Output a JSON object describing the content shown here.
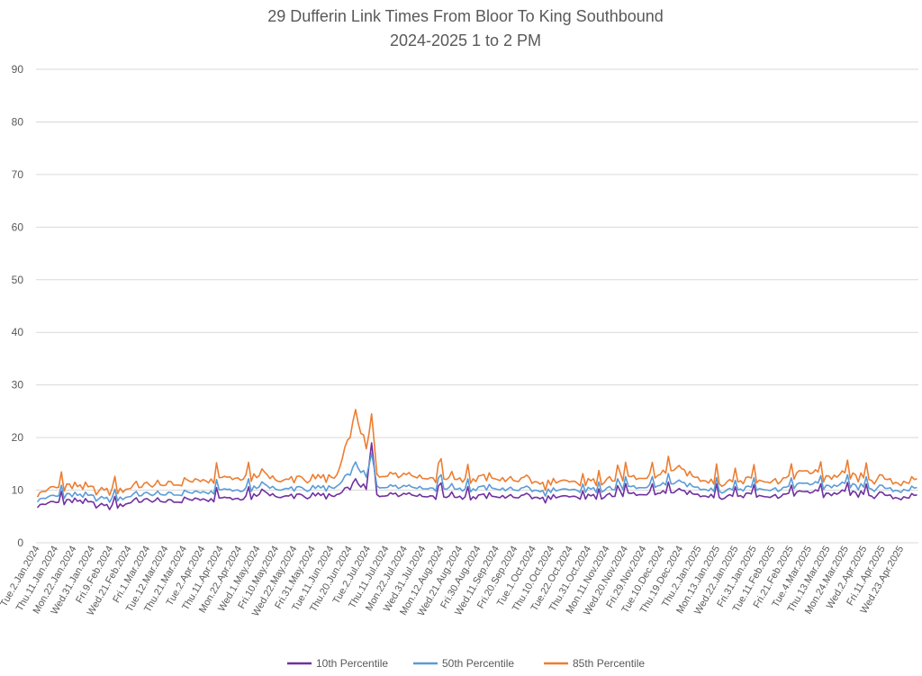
{
  "chart_data": {
    "type": "line",
    "title": "29 Dufferin Link Times From Bloor To King Southbound",
    "subtitle": "2024-2025 1 to 2 PM",
    "xlabel": "",
    "ylabel": "",
    "ylim": [
      0,
      90
    ],
    "yticks": [
      0,
      10,
      20,
      30,
      40,
      50,
      60,
      70,
      80,
      90
    ],
    "grid": true,
    "legend_position": "bottom",
    "x_labels": [
      "Tue.2.Jan.2024",
      "Thu.11.Jan.2024",
      "Mon.22.Jan.2024",
      "Wed.31.Jan.2024",
      "Fri.9.Feb.2024",
      "Wed.21.Feb.2024",
      "Fri.1.Mar.2024",
      "Tue.12.Mar.2024",
      "Thu.21.Mar.2024",
      "Tue.2.Apr.2024",
      "Thu.11.Apr.2024",
      "Mon.22.Apr.2024",
      "Wed.1.May.2024",
      "Fri.10.May.2024",
      "Wed.22.May.2024",
      "Fri.31.May.2024",
      "Tue.11.Jun.2024",
      "Thu.20.Jun.2024",
      "Tue.2.Jul.2024",
      "Thu.11.Jul.2024",
      "Mon.22.Jul.2024",
      "Wed.31.Jul.2024",
      "Mon.12.Aug.2024",
      "Wed.21.Aug.2024",
      "Fri.30.Aug.2024",
      "Wed.11.Sep.2024",
      "Fri.20.Sep.2024",
      "Tue.1.Oct.2024",
      "Thu.10.Oct.2024",
      "Tue.22.Oct.2024",
      "Thu.31.Oct.2024",
      "Mon.11.Nov.2024",
      "Wed.20.Nov.2024",
      "Fri.29.Nov.2024",
      "Tue.10.Dec.2024",
      "Thu.19.Dec.2024",
      "Thu.2.Jan.2025",
      "Mon.13.Jan.2025",
      "Wed.22.Jan.2025",
      "Fri.31.Jan.2025",
      "Tue.11.Feb.2025",
      "Fri.21.Feb.2025",
      "Tue.4.Mar.2025",
      "Thu.13.Mar.2025",
      "Mon.24.Mar.2025",
      "Wed.2.Apr.2025",
      "Fri.11.Apr.2025",
      "Wed.23.Apr.2025"
    ],
    "series": [
      {
        "name": "10th Percentile",
        "color": "#7030a0",
        "values": [
          7.3,
          7.6,
          8.0,
          7.4,
          6.8,
          7.8,
          8.2,
          7.6,
          8.3,
          7.9,
          8.5,
          8.2,
          9.6,
          8.6,
          9.0,
          8.8,
          8.9,
          11.6,
          9.1,
          9.5,
          9.4,
          8.8,
          9.0,
          8.5,
          9.0,
          8.6,
          9.0,
          8.3,
          8.7,
          8.4,
          8.9,
          9.1,
          9.0,
          9.2,
          9.8,
          9.4,
          9.0,
          8.8,
          9.3,
          8.7,
          9.0,
          9.8,
          9.2,
          9.3,
          9.1,
          9.0,
          8.6,
          9.0
        ]
      },
      {
        "name": "50th Percentile",
        "color": "#5b9bd5",
        "values": [
          8.4,
          8.8,
          9.1,
          8.7,
          8.2,
          9.0,
          9.4,
          9.0,
          9.6,
          9.3,
          10.1,
          9.8,
          11.0,
          10.0,
          10.4,
          10.2,
          10.5,
          14.8,
          10.8,
          11.0,
          10.9,
          10.3,
          10.6,
          10.0,
          10.6,
          10.0,
          10.4,
          9.6,
          10.0,
          9.7,
          10.2,
          10.4,
          10.3,
          10.6,
          11.5,
          10.8,
          10.2,
          10.0,
          10.6,
          10.0,
          10.3,
          11.4,
          10.7,
          10.8,
          10.5,
          10.3,
          10.0,
          10.4
        ]
      },
      {
        "name": "85th Percentile",
        "color": "#ed7d31",
        "values": [
          9.6,
          10.4,
          10.8,
          10.2,
          9.8,
          10.6,
          11.2,
          10.8,
          11.8,
          11.4,
          12.4,
          12.0,
          13.2,
          11.6,
          12.3,
          12.0,
          12.5,
          24.5,
          13.0,
          13.4,
          13.2,
          12.2,
          12.6,
          11.8,
          12.6,
          11.8,
          12.3,
          11.0,
          11.6,
          11.0,
          11.8,
          12.2,
          12.0,
          12.4,
          14.2,
          12.8,
          11.8,
          11.5,
          12.3,
          11.5,
          12.0,
          13.8,
          12.4,
          12.6,
          12.2,
          12.0,
          11.5,
          12.0
        ]
      }
    ]
  }
}
